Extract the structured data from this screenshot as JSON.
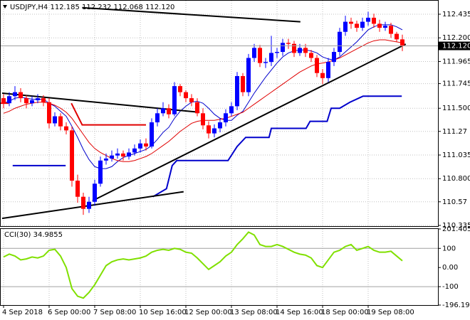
{
  "chart_data": {
    "type": "candlestick",
    "title": "USDJPY,H4  112.185 112.232 112.068 112.120",
    "categories": [
      "4 Sep 2018",
      null,
      null,
      null,
      null,
      null,
      null,
      null,
      "6 Sep 00:00",
      null,
      null,
      null,
      null,
      null,
      null,
      null,
      "7 Sep 08:00",
      null,
      null,
      null,
      null,
      null,
      null,
      null,
      "10 Sep 16:00",
      null,
      null,
      null,
      null,
      null,
      null,
      null,
      "12 Sep 00:00",
      null,
      null,
      null,
      null,
      null,
      null,
      null,
      "13 Sep 08:00",
      null,
      null,
      null,
      null,
      null,
      null,
      null,
      "14 Sep 16:00",
      null,
      null,
      null,
      null,
      null,
      null,
      null,
      "18 Sep 00:00",
      null,
      null,
      null,
      null,
      null,
      null,
      null,
      "19 Sep 08:00",
      null,
      null,
      null,
      null,
      null,
      null
    ],
    "open": [
      111.6,
      111.55,
      111.62,
      111.66,
      111.6,
      111.55,
      111.58,
      111.6,
      111.56,
      111.35,
      111.42,
      111.32,
      111.28,
      110.78,
      110.62,
      110.5,
      110.57,
      110.75,
      110.98,
      111.0,
      111.03,
      111.05,
      111.02,
      111.06,
      111.1,
      111.15,
      111.12,
      111.36,
      111.45,
      111.5,
      111.44,
      111.72,
      111.66,
      111.6,
      111.56,
      111.45,
      111.33,
      111.25,
      111.3,
      111.36,
      111.45,
      111.52,
      111.82,
      111.66,
      112.0,
      112.1,
      111.95,
      111.96,
      112.05,
      112.06,
      112.15,
      112.14,
      112.05,
      112.1,
      112.05,
      112.0,
      111.85,
      111.8,
      111.96,
      112.06,
      112.26,
      112.36,
      112.34,
      112.3,
      112.36,
      112.4,
      112.34,
      112.3,
      112.32,
      112.24,
      112.185
    ],
    "high": [
      111.64,
      111.66,
      111.72,
      111.7,
      111.63,
      111.62,
      111.64,
      111.63,
      111.6,
      111.46,
      111.45,
      111.36,
      111.32,
      110.84,
      110.66,
      110.62,
      110.79,
      111.02,
      111.05,
      111.08,
      111.1,
      111.08,
      111.1,
      111.14,
      111.19,
      111.2,
      111.4,
      111.5,
      111.56,
      111.54,
      111.76,
      111.74,
      111.68,
      111.64,
      111.6,
      111.5,
      111.37,
      111.34,
      111.4,
      111.49,
      111.56,
      111.86,
      111.85,
      112.04,
      112.14,
      112.13,
      112.0,
      112.22,
      112.1,
      112.19,
      112.19,
      112.17,
      112.14,
      112.14,
      112.08,
      112.03,
      111.89,
      112.0,
      112.1,
      112.3,
      112.42,
      112.4,
      112.37,
      112.4,
      112.46,
      112.44,
      112.38,
      112.36,
      112.35,
      112.26,
      112.232
    ],
    "low": [
      111.5,
      111.52,
      111.58,
      111.56,
      111.5,
      111.52,
      111.55,
      111.52,
      111.3,
      111.32,
      111.28,
      111.24,
      110.72,
      110.56,
      110.44,
      110.46,
      110.53,
      110.72,
      110.94,
      110.97,
      111.0,
      110.98,
      110.99,
      111.03,
      111.06,
      111.08,
      111.1,
      111.32,
      111.42,
      111.4,
      111.42,
      111.62,
      111.56,
      111.52,
      111.42,
      111.29,
      111.2,
      111.21,
      111.26,
      111.32,
      111.42,
      111.48,
      111.62,
      111.62,
      111.96,
      111.91,
      111.9,
      111.92,
      112.0,
      112.02,
      112.09,
      112.01,
      112.02,
      112.01,
      111.96,
      111.81,
      111.74,
      111.76,
      111.92,
      112.02,
      112.22,
      112.29,
      112.26,
      112.27,
      112.32,
      112.3,
      112.26,
      112.27,
      112.2,
      112.16,
      112.068
    ],
    "close": [
      111.55,
      111.62,
      111.66,
      111.6,
      111.55,
      111.58,
      111.6,
      111.56,
      111.35,
      111.42,
      111.32,
      111.28,
      110.78,
      110.62,
      110.5,
      110.57,
      110.75,
      110.98,
      111.0,
      111.03,
      111.05,
      111.02,
      111.06,
      111.1,
      111.15,
      111.12,
      111.36,
      111.45,
      111.5,
      111.44,
      111.72,
      111.66,
      111.6,
      111.56,
      111.45,
      111.33,
      111.25,
      111.3,
      111.36,
      111.45,
      111.52,
      111.82,
      111.66,
      112.0,
      112.1,
      111.95,
      111.96,
      112.05,
      112.06,
      112.15,
      112.14,
      112.05,
      112.1,
      112.05,
      112.0,
      111.85,
      111.8,
      111.96,
      112.06,
      112.26,
      112.36,
      112.34,
      112.3,
      112.36,
      112.4,
      112.34,
      112.3,
      112.32,
      112.24,
      112.185,
      112.12
    ],
    "up_color": "#0000ff",
    "down_color": "#ff0000",
    "moving_averages": [
      {
        "color": "#0000cc",
        "values": [
          111.55,
          111.57,
          111.6,
          111.61,
          111.6,
          111.59,
          111.59,
          111.59,
          111.55,
          111.52,
          111.47,
          111.42,
          111.32,
          111.21,
          111.09,
          110.99,
          110.92,
          110.9,
          110.9,
          110.92,
          110.97,
          111.01,
          111.03,
          111.05,
          111.07,
          111.09,
          111.13,
          111.19,
          111.26,
          111.31,
          111.4,
          111.47,
          111.52,
          111.56,
          111.57,
          111.55,
          111.5,
          111.44,
          111.4,
          111.38,
          111.38,
          111.43,
          111.47,
          111.56,
          111.65,
          111.73,
          111.81,
          111.88,
          111.95,
          112.01,
          112.05,
          112.07,
          112.08,
          112.08,
          112.07,
          112.05,
          112.01,
          111.99,
          111.98,
          112.01,
          112.06,
          112.11,
          112.16,
          112.22,
          112.28,
          112.31,
          112.33,
          112.33,
          112.33,
          112.31,
          112.28
        ]
      },
      {
        "color": "#e00000",
        "values": [
          111.45,
          111.47,
          111.5,
          111.52,
          111.54,
          111.55,
          111.56,
          111.56,
          111.55,
          111.53,
          111.5,
          111.46,
          111.4,
          111.32,
          111.24,
          111.16,
          111.1,
          111.06,
          111.03,
          111.0,
          110.98,
          110.97,
          110.97,
          110.98,
          111.0,
          111.02,
          111.05,
          111.09,
          111.13,
          111.17,
          111.22,
          111.27,
          111.31,
          111.35,
          111.37,
          111.38,
          111.38,
          111.38,
          111.39,
          111.4,
          111.42,
          111.44,
          111.46,
          111.5,
          111.54,
          111.58,
          111.62,
          111.66,
          111.7,
          111.74,
          111.78,
          111.82,
          111.86,
          111.89,
          111.92,
          111.94,
          111.95,
          111.96,
          111.98,
          112.0,
          112.03,
          112.06,
          112.09,
          112.12,
          112.15,
          112.17,
          112.18,
          112.18,
          112.17,
          112.16,
          112.15
        ]
      }
    ],
    "step_lines": [
      {
        "color": "#0000cc",
        "x": [
          1.6,
          10.9
        ],
        "values": [
          110.93,
          110.93
        ]
      },
      {
        "color": "#0000cc",
        "x": [
          26.2,
          28.6,
          29.6,
          30.4,
          39.4,
          41.0,
          42.5,
          46.6,
          47.0,
          53.1,
          53.8,
          56.8,
          57.5,
          59.0,
          60.8,
          63.1,
          69.9
        ],
        "values": [
          110.62,
          110.7,
          110.93,
          110.98,
          110.98,
          111.12,
          111.21,
          111.21,
          111.3,
          111.3,
          111.37,
          111.37,
          111.5,
          111.5,
          111.56,
          111.62,
          111.62
        ]
      },
      {
        "color": "#e00000",
        "x": [
          -0.6,
          0.9,
          5,
          11.9,
          13.8,
          25.0
        ],
        "values": [
          111.55,
          111.55,
          null,
          111.55,
          111.335,
          111.335
        ]
      }
    ],
    "trendlines": [
      {
        "color": "#000000",
        "x": [
          -0.25,
          31.6
        ],
        "values": [
          110.405,
          110.67
        ]
      },
      {
        "color": "#000000",
        "x": [
          15.6,
          70.6
        ],
        "values": [
          110.58,
          112.138
        ]
      },
      {
        "color": "#000000",
        "x": [
          -0.25,
          34.4
        ],
        "values": [
          111.65,
          111.46
        ]
      },
      {
        "color": "#000000",
        "x": [
          13.8,
          52.1
        ],
        "values": [
          112.5,
          112.36
        ]
      }
    ],
    "current_price": {
      "value": 112.12,
      "label": "112.120"
    },
    "ylim": [
      110.328,
      112.548
    ],
    "yticks": [
      112.435,
      {
        "value": 112.2,
        "label": "112.200"
      },
      111.965,
      111.745,
      {
        "value": 111.5,
        "label": "111.500"
      },
      111.27,
      111.035,
      {
        "value": 110.8,
        "label": "110.800"
      },
      110.57,
      110.335
    ],
    "grid": true,
    "cci": {
      "title": "CCI(30) 34.9855",
      "color": "#80e000",
      "values": [
        55,
        70,
        60,
        40,
        45,
        55,
        50,
        60,
        90,
        95,
        60,
        0,
        -110,
        -150,
        -160,
        -130,
        -90,
        -40,
        10,
        30,
        40,
        45,
        40,
        45,
        50,
        60,
        80,
        90,
        95,
        90,
        100,
        95,
        80,
        75,
        50,
        20,
        -10,
        10,
        30,
        60,
        80,
        120,
        150,
        185,
        170,
        120,
        110,
        110,
        120,
        110,
        95,
        80,
        70,
        65,
        50,
        10,
        0,
        40,
        80,
        90,
        110,
        120,
        90,
        100,
        110,
        90,
        80,
        80,
        85,
        60,
        34.9855
      ],
      "levels": [
        100,
        -100
      ],
      "y2lim": [
        -196.1996,
        201.4051
      ],
      "y2ticks": [
        201.4051,
        100,
        {
          "value": 0,
          "label": "0.00"
        },
        -100,
        -196.1996
      ]
    }
  }
}
